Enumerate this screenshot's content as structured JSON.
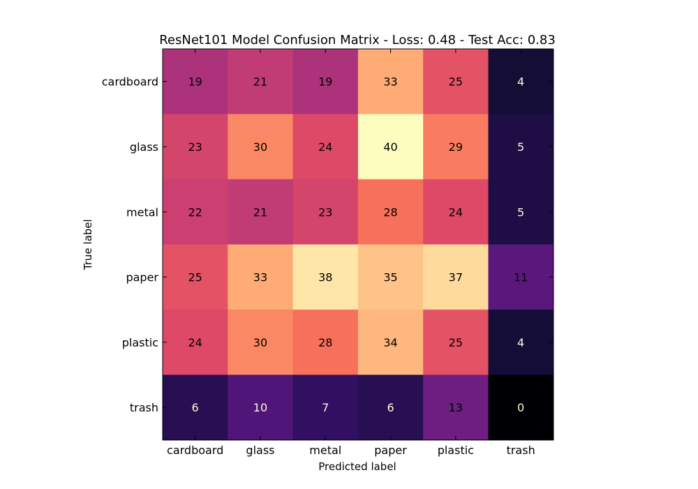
{
  "chart_data": {
    "type": "heatmap",
    "title": "ResNet101 Model Confusion Matrix - Loss: 0.48 - Test Acc: 0.83",
    "xlabel": "Predicted label",
    "ylabel": "True label",
    "x_categories": [
      "cardboard",
      "glass",
      "metal",
      "paper",
      "plastic",
      "trash"
    ],
    "y_categories": [
      "cardboard",
      "glass",
      "metal",
      "paper",
      "plastic",
      "trash"
    ],
    "values": [
      [
        19,
        21,
        19,
        33,
        25,
        4
      ],
      [
        23,
        30,
        24,
        40,
        29,
        5
      ],
      [
        22,
        21,
        23,
        28,
        24,
        5
      ],
      [
        25,
        33,
        38,
        35,
        37,
        11
      ],
      [
        24,
        30,
        28,
        34,
        25,
        4
      ],
      [
        6,
        10,
        7,
        6,
        13,
        0
      ]
    ],
    "value_range": [
      0,
      40
    ],
    "colormap": "magma",
    "grid": false,
    "legend": "none"
  },
  "colors": {
    "text_light": "#fff8dc",
    "text_dark": "#000000",
    "axis": "#000000"
  }
}
